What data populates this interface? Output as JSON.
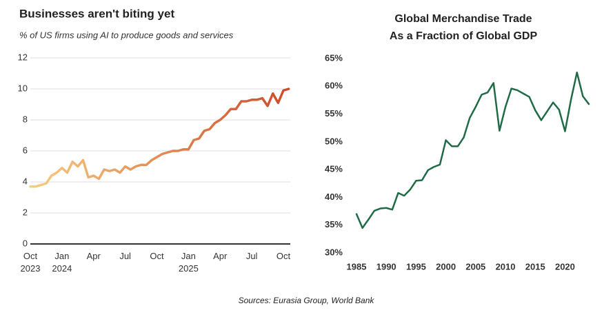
{
  "chart_data": [
    {
      "type": "line",
      "title": "Businesses aren't biting yet",
      "subtitle": "% of US firms using AI to produce goods and services",
      "categories": [
        "Oct 2023",
        null,
        null,
        null,
        null,
        null,
        "Jan 2024",
        null,
        null,
        null,
        null,
        null,
        "Apr",
        null,
        null,
        null,
        null,
        null,
        "Jul",
        null,
        null,
        null,
        null,
        null,
        "Oct",
        null,
        null,
        null,
        null,
        null,
        "Jan 2025",
        null,
        null,
        null,
        null,
        null,
        "Apr",
        null,
        null,
        null,
        null,
        null,
        "Jul",
        null,
        null,
        null,
        null,
        null,
        "Oct",
        null
      ],
      "values": [
        3.7,
        3.7,
        3.8,
        3.9,
        4.4,
        4.6,
        4.9,
        4.6,
        5.3,
        5.0,
        5.4,
        4.3,
        4.4,
        4.2,
        4.8,
        4.7,
        4.8,
        4.6,
        5.0,
        4.8,
        5.0,
        5.1,
        5.1,
        5.4,
        5.6,
        5.8,
        5.9,
        6.0,
        6.0,
        6.1,
        6.1,
        6.7,
        6.8,
        7.3,
        7.4,
        7.8,
        8.0,
        8.3,
        8.7,
        8.7,
        9.2,
        9.2,
        9.3,
        9.3,
        9.4,
        8.9,
        9.7,
        9.1,
        9.9,
        10.0
      ],
      "colors": [
        "#f7cd80",
        "#cc4a2a"
      ],
      "ylim": [
        0,
        12
      ],
      "yticks": [
        0,
        2,
        4,
        6,
        8,
        10,
        12
      ],
      "grid": true
    },
    {
      "type": "line",
      "title": [
        "Global Merchandise Trade",
        "As a Fraction of Global GDP"
      ],
      "x": [
        1985,
        1986,
        1987,
        1988,
        1989,
        1990,
        1991,
        1992,
        1993,
        1994,
        1995,
        1996,
        1997,
        1998,
        1999,
        2000,
        2001,
        2002,
        2003,
        2004,
        2005,
        2006,
        2007,
        2008,
        2009,
        2010,
        2011,
        2012,
        2013,
        2014,
        2015,
        2016,
        2017,
        2018,
        2019,
        2020,
        2021,
        2022,
        2023,
        2024
      ],
      "values": [
        37.0,
        34.5,
        36.0,
        37.6,
        38.0,
        38.1,
        37.8,
        40.8,
        40.3,
        41.4,
        43.0,
        43.1,
        44.9,
        45.5,
        45.9,
        50.3,
        49.2,
        49.2,
        50.8,
        54.3,
        56.3,
        58.5,
        58.9,
        60.6,
        52.0,
        56.3,
        59.6,
        59.3,
        58.7,
        58.1,
        55.7,
        53.9,
        55.5,
        57.1,
        55.8,
        51.9,
        57.6,
        62.5,
        58.2,
        56.8
      ],
      "color": "#1e6b46",
      "xlim": [
        1985,
        2024
      ],
      "xticks": [
        1985,
        1990,
        1995,
        2000,
        2005,
        2010,
        2015,
        2020
      ],
      "ylim": [
        30,
        65
      ],
      "yticks": [
        {
          "value": 30,
          "label": "30%"
        },
        {
          "value": 35,
          "label": "35%"
        },
        {
          "value": 40,
          "label": "40%"
        },
        {
          "value": 45,
          "label": "45%"
        },
        {
          "value": 50,
          "label": "50%"
        },
        {
          "value": 55,
          "label": "55%"
        },
        {
          "value": 60,
          "label": "60%"
        },
        {
          "value": 65,
          "label": "65%"
        }
      ],
      "grid": false
    }
  ],
  "source": "Sources: Eurasia Group, World Bank"
}
